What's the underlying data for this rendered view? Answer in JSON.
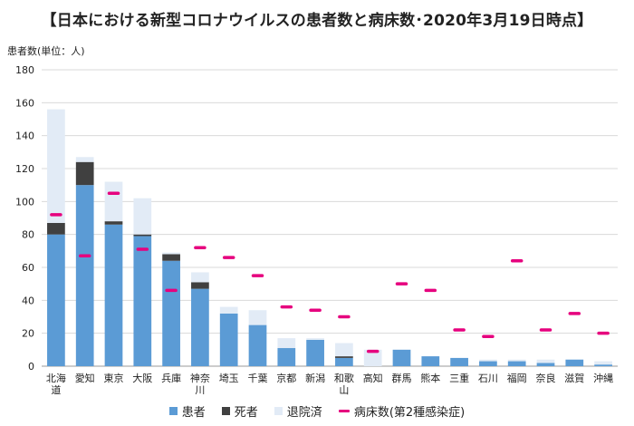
{
  "title": "【日本における新型コロナウイルスの患者数と病床数･2020年3月19日時点】",
  "chart_data": {
    "type": "bar",
    "stacked": true,
    "ylabel": "患者数(単位：人)",
    "ylim": [
      0,
      180
    ],
    "yticks": [
      0,
      20,
      40,
      60,
      80,
      100,
      120,
      140,
      160,
      180
    ],
    "grid": true,
    "legend_position": "bottom",
    "categories": [
      "北海道",
      "愛知",
      "東京",
      "大阪",
      "兵庫",
      "神奈川",
      "埼玉",
      "千葉",
      "京都",
      "新潟",
      "和歌山",
      "高知",
      "群馬",
      "熊本",
      "三重",
      "石川",
      "福岡",
      "奈良",
      "滋賀",
      "沖縄"
    ],
    "series": [
      {
        "name": "患者",
        "color": "#5b9bd5",
        "values": [
          80,
          110,
          86,
          79,
          64,
          47,
          32,
          25,
          11,
          16,
          5,
          0,
          10,
          6,
          5,
          3,
          3,
          2,
          4,
          1
        ]
      },
      {
        "name": "死者",
        "color": "#404040",
        "values": [
          7,
          14,
          2,
          1,
          4,
          4,
          0,
          0,
          0,
          0,
          1,
          0,
          0,
          0,
          0,
          0,
          0,
          0,
          0,
          0
        ]
      },
      {
        "name": "退院済",
        "color": "#e2ebf6",
        "values": [
          69,
          3,
          24,
          22,
          1,
          6,
          4,
          9,
          6,
          1,
          8,
          10,
          0,
          0,
          0,
          1,
          1,
          2,
          0,
          2
        ]
      }
    ],
    "line_series": {
      "name": "病床数(第2種感染症)",
      "color": "#e6007e",
      "values": [
        92,
        67,
        105,
        71,
        46,
        72,
        66,
        55,
        36,
        34,
        30,
        9,
        50,
        46,
        22,
        18,
        64,
        22,
        32,
        20
      ]
    }
  }
}
